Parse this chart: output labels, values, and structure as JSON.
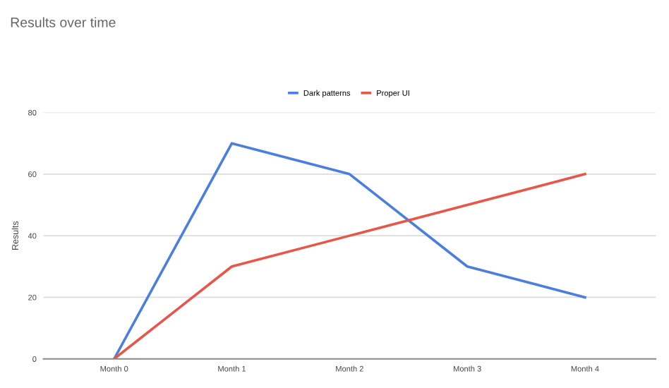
{
  "chart_data": {
    "type": "line",
    "title": "Results over time",
    "ylabel": "Results",
    "categories": [
      "Month 0",
      "Month 1",
      "Month 2",
      "Month 3",
      "Month 4"
    ],
    "series": [
      {
        "name": "Dark patterns",
        "color": "#4a7fe0",
        "values": [
          0,
          70,
          60,
          30,
          20
        ]
      },
      {
        "name": "Proper UI",
        "color": "#e8564a",
        "values": [
          0,
          30,
          40,
          50,
          60
        ]
      }
    ],
    "ylim": [
      0,
      80
    ],
    "yticks": [
      0,
      20,
      40,
      60,
      80
    ],
    "grid": "y",
    "legend": "top",
    "marker": "none",
    "line_style": "solid"
  }
}
